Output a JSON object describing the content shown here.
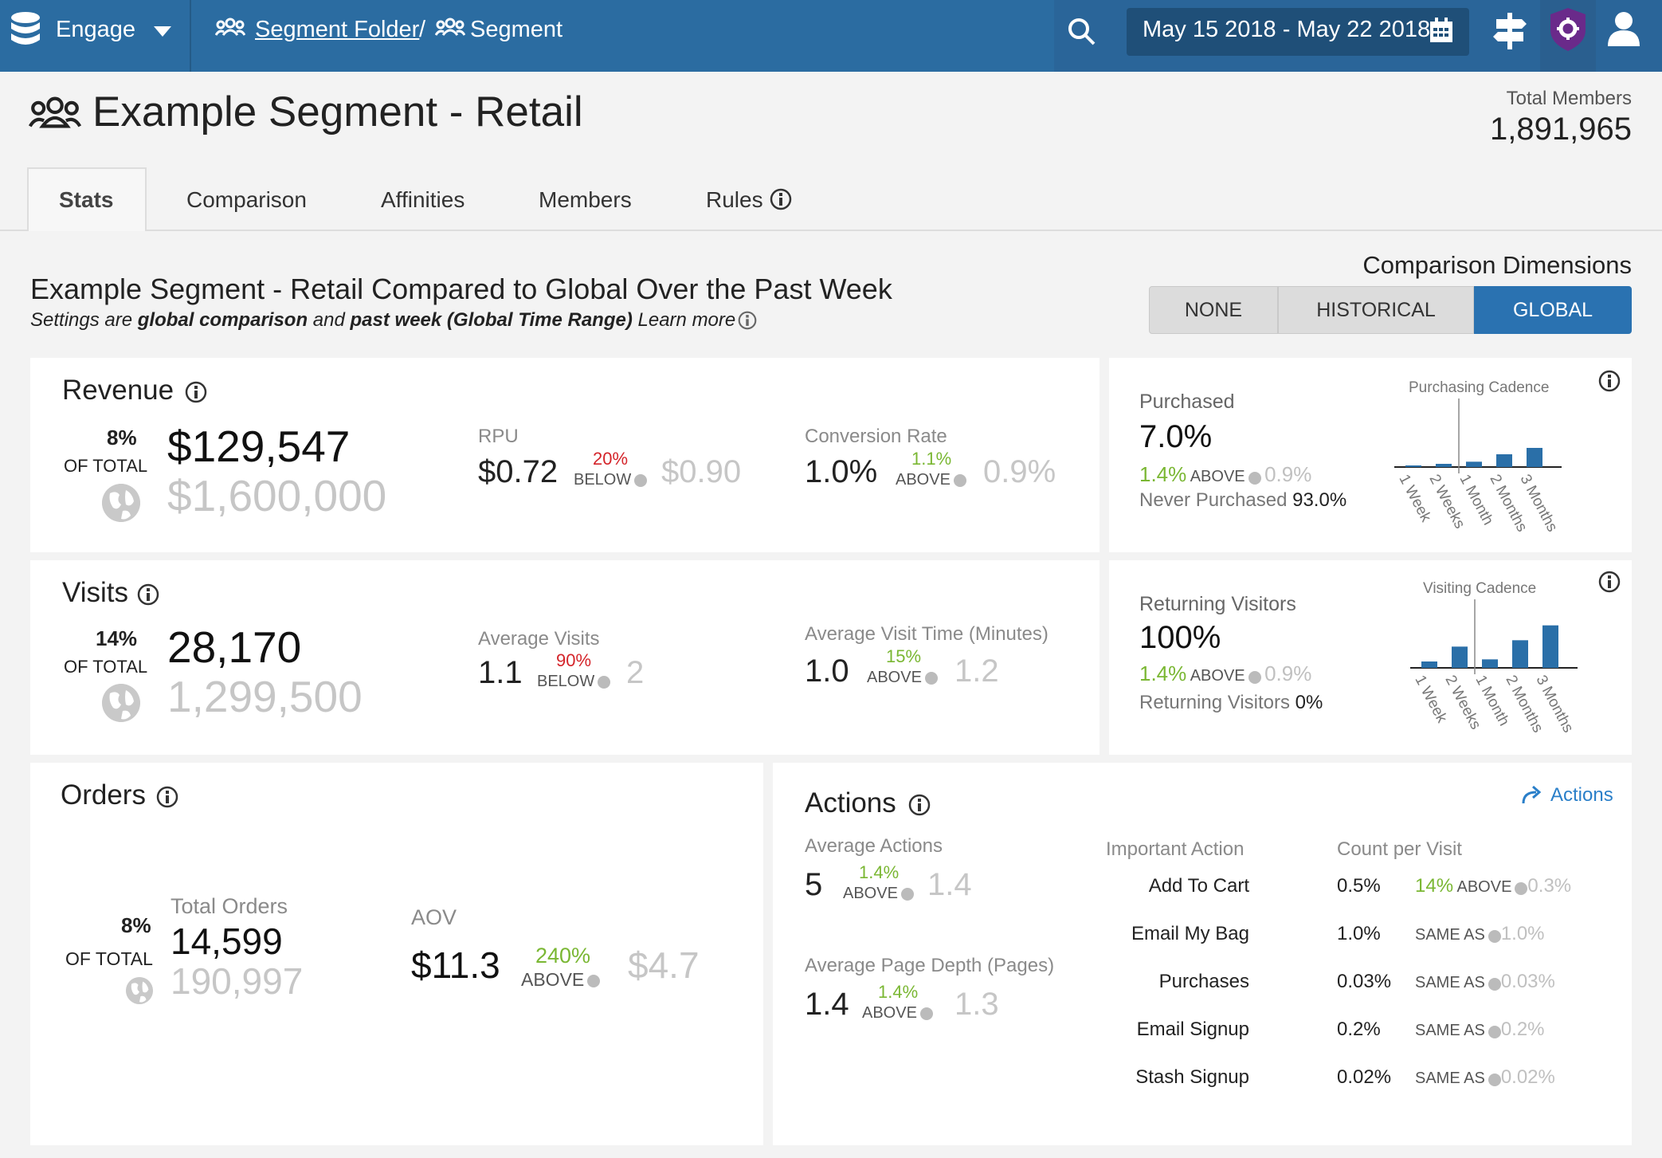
{
  "app": {
    "name": "Engage"
  },
  "breadcrumb": {
    "folder": "Segment Folder",
    "sep": "/",
    "current": "Segment"
  },
  "header": {
    "date_range": "May 15 2018 - May 22 2018"
  },
  "page": {
    "title": "Example Segment - Retail",
    "total_members_label": "Total Members",
    "total_members": "1,891,965"
  },
  "tabs": [
    {
      "label": "Stats"
    },
    {
      "label": "Comparison"
    },
    {
      "label": "Affinities"
    },
    {
      "label": "Members"
    },
    {
      "label": "Rules"
    }
  ],
  "section": {
    "title": "Example Segment - Retail Compared to Global Over the Past Week",
    "sub_1": "Settings are ",
    "sub_2": "global comparison",
    "sub_3": " and ",
    "sub_4": "past week (Global Time Range)",
    "sub_5": " Learn more"
  },
  "comparison": {
    "label": "Comparison Dimensions",
    "options": [
      "NONE",
      "HISTORICAL",
      "GLOBAL"
    ],
    "selected": "GLOBAL"
  },
  "revenue": {
    "title": "Revenue",
    "pct": "8%",
    "of_total": "OF TOTAL",
    "value": "$129,547",
    "global": "$1,600,000",
    "rpu_label": "RPU",
    "rpu": "$0.72",
    "rpu_pct": "20%",
    "rpu_dir": "BELOW",
    "rpu_global": "$0.90",
    "conv_label": "Conversion Rate",
    "conv": "1.0%",
    "conv_pct": "1.1%",
    "conv_dir": "ABOVE",
    "conv_global": "0.9%"
  },
  "purchased": {
    "label": "Purchased",
    "value": "7.0%",
    "pct": "1.4%",
    "dir": "ABOVE",
    "global": "0.9%",
    "never_label": "Never Purchased",
    "never_value": "93.0%",
    "chart_data": {
      "type": "bar",
      "title": "Purchasing Cadence",
      "categories": [
        "1 Week",
        "2 Weeks",
        "1 Month",
        "2 Months",
        "3 Months"
      ],
      "values": [
        0.5,
        3,
        5,
        12,
        18
      ],
      "comparison_marker": "2 Weeks",
      "ylim": [
        0,
        60
      ]
    }
  },
  "visits": {
    "title": "Visits",
    "pct": "14%",
    "of_total": "OF TOTAL",
    "value": "28,170",
    "global": "1,299,500",
    "avg_label": "Average Visits",
    "avg": "1.1",
    "avg_pct": "90%",
    "avg_dir": "BELOW",
    "avg_global": "2",
    "time_label": "Average Visit Time (Minutes)",
    "time": "1.0",
    "time_pct": "15%",
    "time_dir": "ABOVE",
    "time_global": "1.2"
  },
  "returning": {
    "label": "Returning Visitors",
    "value": "100%",
    "pct": "1.4%",
    "dir": "ABOVE",
    "global": "0.9%",
    "second_label": "Returning Visitors",
    "second_value": "0%",
    "chart_data": {
      "type": "bar",
      "title": "Visiting Cadence",
      "categories": [
        "1 Week",
        "2 Weeks",
        "1 Month",
        "2 Months",
        "3 Months"
      ],
      "values": [
        6,
        20,
        8,
        26,
        40
      ],
      "comparison_marker": "2 Weeks",
      "ylim": [
        0,
        60
      ]
    }
  },
  "orders": {
    "title": "Orders",
    "pct": "8%",
    "of_total": "OF TOTAL",
    "total_label": "Total Orders",
    "total": "14,599",
    "global": "190,997",
    "aov_label": "AOV",
    "aov": "$11.3",
    "aov_pct": "240%",
    "aov_dir": "ABOVE",
    "aov_global": "$4.7"
  },
  "actions": {
    "title": "Actions",
    "link": "Actions",
    "avg_label": "Average Actions",
    "avg": "5",
    "avg_pct": "1.4%",
    "avg_dir": "ABOVE",
    "avg_global": "1.4",
    "depth_label": "Average Page Depth (Pages)",
    "depth": "1.4",
    "depth_pct": "1.4%",
    "depth_dir": "ABOVE",
    "depth_global": "1.3",
    "col_action": "Important Action",
    "col_count": "Count per Visit",
    "rows": [
      {
        "name": "Add To Cart",
        "value": "0.5%",
        "pct": "14%",
        "dir": "ABOVE",
        "global": "0.3%"
      },
      {
        "name": "Email My Bag",
        "value": "1.0%",
        "pct": "",
        "dir": "SAME AS",
        "global": "1.0%"
      },
      {
        "name": "Purchases",
        "value": "0.03%",
        "pct": "",
        "dir": "SAME AS",
        "global": "0.03%"
      },
      {
        "name": "Email Signup",
        "value": "0.2%",
        "pct": "",
        "dir": "SAME AS",
        "global": "0.2%"
      },
      {
        "name": "Stash Signup",
        "value": "0.02%",
        "pct": "",
        "dir": "SAME AS",
        "global": "0.02%"
      }
    ]
  },
  "colors": {
    "primary": "#2b6ca1",
    "selected": "#2a72b1",
    "green": "#7ab733",
    "red": "#d4242a",
    "bar": "#2a6fa8"
  }
}
